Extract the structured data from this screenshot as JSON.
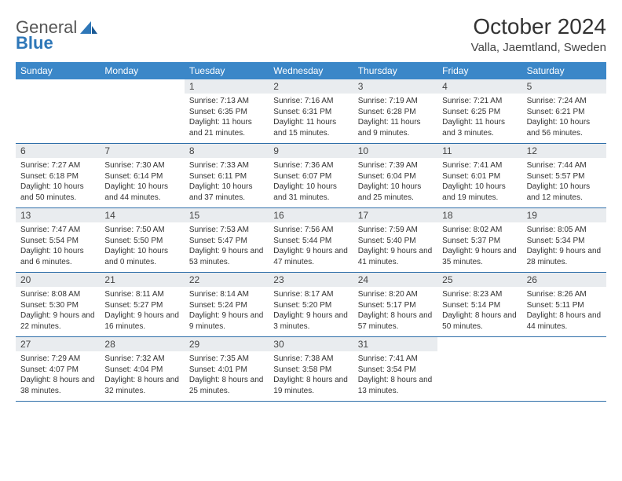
{
  "brand": {
    "part1": "General",
    "part2": "Blue"
  },
  "title": "October 2024",
  "location": "Valla, Jaemtland, Sweden",
  "colors": {
    "header_bg": "#3b87c8",
    "header_text": "#ffffff",
    "daynum_bg": "#e9ecef",
    "rule": "#2e6ea8",
    "brand_blue": "#2e77b8"
  },
  "weekdays": [
    "Sunday",
    "Monday",
    "Tuesday",
    "Wednesday",
    "Thursday",
    "Friday",
    "Saturday"
  ],
  "weeks": [
    [
      {
        "n": "",
        "sunrise": "",
        "sunset": "",
        "daylight": ""
      },
      {
        "n": "",
        "sunrise": "",
        "sunset": "",
        "daylight": ""
      },
      {
        "n": "1",
        "sunrise": "Sunrise: 7:13 AM",
        "sunset": "Sunset: 6:35 PM",
        "daylight": "Daylight: 11 hours and 21 minutes."
      },
      {
        "n": "2",
        "sunrise": "Sunrise: 7:16 AM",
        "sunset": "Sunset: 6:31 PM",
        "daylight": "Daylight: 11 hours and 15 minutes."
      },
      {
        "n": "3",
        "sunrise": "Sunrise: 7:19 AM",
        "sunset": "Sunset: 6:28 PM",
        "daylight": "Daylight: 11 hours and 9 minutes."
      },
      {
        "n": "4",
        "sunrise": "Sunrise: 7:21 AM",
        "sunset": "Sunset: 6:25 PM",
        "daylight": "Daylight: 11 hours and 3 minutes."
      },
      {
        "n": "5",
        "sunrise": "Sunrise: 7:24 AM",
        "sunset": "Sunset: 6:21 PM",
        "daylight": "Daylight: 10 hours and 56 minutes."
      }
    ],
    [
      {
        "n": "6",
        "sunrise": "Sunrise: 7:27 AM",
        "sunset": "Sunset: 6:18 PM",
        "daylight": "Daylight: 10 hours and 50 minutes."
      },
      {
        "n": "7",
        "sunrise": "Sunrise: 7:30 AM",
        "sunset": "Sunset: 6:14 PM",
        "daylight": "Daylight: 10 hours and 44 minutes."
      },
      {
        "n": "8",
        "sunrise": "Sunrise: 7:33 AM",
        "sunset": "Sunset: 6:11 PM",
        "daylight": "Daylight: 10 hours and 37 minutes."
      },
      {
        "n": "9",
        "sunrise": "Sunrise: 7:36 AM",
        "sunset": "Sunset: 6:07 PM",
        "daylight": "Daylight: 10 hours and 31 minutes."
      },
      {
        "n": "10",
        "sunrise": "Sunrise: 7:39 AM",
        "sunset": "Sunset: 6:04 PM",
        "daylight": "Daylight: 10 hours and 25 minutes."
      },
      {
        "n": "11",
        "sunrise": "Sunrise: 7:41 AM",
        "sunset": "Sunset: 6:01 PM",
        "daylight": "Daylight: 10 hours and 19 minutes."
      },
      {
        "n": "12",
        "sunrise": "Sunrise: 7:44 AM",
        "sunset": "Sunset: 5:57 PM",
        "daylight": "Daylight: 10 hours and 12 minutes."
      }
    ],
    [
      {
        "n": "13",
        "sunrise": "Sunrise: 7:47 AM",
        "sunset": "Sunset: 5:54 PM",
        "daylight": "Daylight: 10 hours and 6 minutes."
      },
      {
        "n": "14",
        "sunrise": "Sunrise: 7:50 AM",
        "sunset": "Sunset: 5:50 PM",
        "daylight": "Daylight: 10 hours and 0 minutes."
      },
      {
        "n": "15",
        "sunrise": "Sunrise: 7:53 AM",
        "sunset": "Sunset: 5:47 PM",
        "daylight": "Daylight: 9 hours and 53 minutes."
      },
      {
        "n": "16",
        "sunrise": "Sunrise: 7:56 AM",
        "sunset": "Sunset: 5:44 PM",
        "daylight": "Daylight: 9 hours and 47 minutes."
      },
      {
        "n": "17",
        "sunrise": "Sunrise: 7:59 AM",
        "sunset": "Sunset: 5:40 PM",
        "daylight": "Daylight: 9 hours and 41 minutes."
      },
      {
        "n": "18",
        "sunrise": "Sunrise: 8:02 AM",
        "sunset": "Sunset: 5:37 PM",
        "daylight": "Daylight: 9 hours and 35 minutes."
      },
      {
        "n": "19",
        "sunrise": "Sunrise: 8:05 AM",
        "sunset": "Sunset: 5:34 PM",
        "daylight": "Daylight: 9 hours and 28 minutes."
      }
    ],
    [
      {
        "n": "20",
        "sunrise": "Sunrise: 8:08 AM",
        "sunset": "Sunset: 5:30 PM",
        "daylight": "Daylight: 9 hours and 22 minutes."
      },
      {
        "n": "21",
        "sunrise": "Sunrise: 8:11 AM",
        "sunset": "Sunset: 5:27 PM",
        "daylight": "Daylight: 9 hours and 16 minutes."
      },
      {
        "n": "22",
        "sunrise": "Sunrise: 8:14 AM",
        "sunset": "Sunset: 5:24 PM",
        "daylight": "Daylight: 9 hours and 9 minutes."
      },
      {
        "n": "23",
        "sunrise": "Sunrise: 8:17 AM",
        "sunset": "Sunset: 5:20 PM",
        "daylight": "Daylight: 9 hours and 3 minutes."
      },
      {
        "n": "24",
        "sunrise": "Sunrise: 8:20 AM",
        "sunset": "Sunset: 5:17 PM",
        "daylight": "Daylight: 8 hours and 57 minutes."
      },
      {
        "n": "25",
        "sunrise": "Sunrise: 8:23 AM",
        "sunset": "Sunset: 5:14 PM",
        "daylight": "Daylight: 8 hours and 50 minutes."
      },
      {
        "n": "26",
        "sunrise": "Sunrise: 8:26 AM",
        "sunset": "Sunset: 5:11 PM",
        "daylight": "Daylight: 8 hours and 44 minutes."
      }
    ],
    [
      {
        "n": "27",
        "sunrise": "Sunrise: 7:29 AM",
        "sunset": "Sunset: 4:07 PM",
        "daylight": "Daylight: 8 hours and 38 minutes."
      },
      {
        "n": "28",
        "sunrise": "Sunrise: 7:32 AM",
        "sunset": "Sunset: 4:04 PM",
        "daylight": "Daylight: 8 hours and 32 minutes."
      },
      {
        "n": "29",
        "sunrise": "Sunrise: 7:35 AM",
        "sunset": "Sunset: 4:01 PM",
        "daylight": "Daylight: 8 hours and 25 minutes."
      },
      {
        "n": "30",
        "sunrise": "Sunrise: 7:38 AM",
        "sunset": "Sunset: 3:58 PM",
        "daylight": "Daylight: 8 hours and 19 minutes."
      },
      {
        "n": "31",
        "sunrise": "Sunrise: 7:41 AM",
        "sunset": "Sunset: 3:54 PM",
        "daylight": "Daylight: 8 hours and 13 minutes."
      },
      {
        "n": "",
        "sunrise": "",
        "sunset": "",
        "daylight": ""
      },
      {
        "n": "",
        "sunrise": "",
        "sunset": "",
        "daylight": ""
      }
    ]
  ]
}
